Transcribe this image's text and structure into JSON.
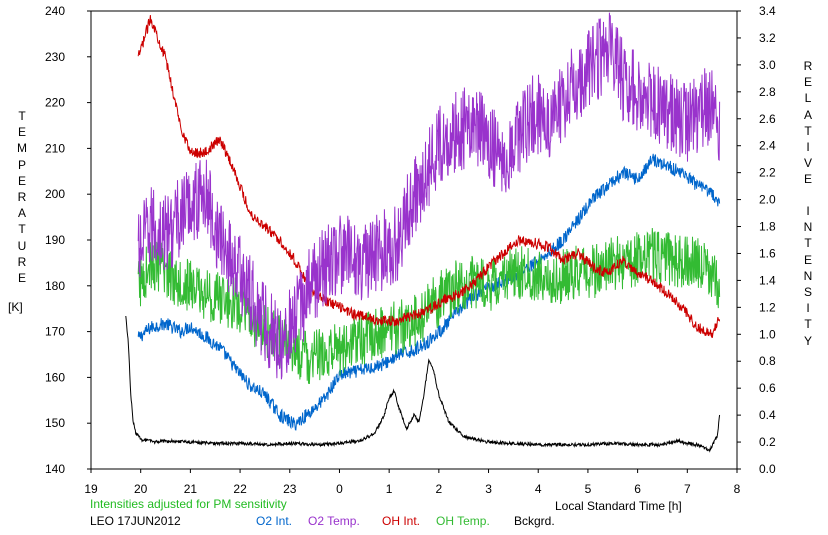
{
  "chart_data": {
    "type": "line",
    "y_left_label": "TEMPERATURE",
    "y_left_unit": "[K]",
    "y_right_label_1": "RELATIVE",
    "y_right_label_2": "INTENSITY",
    "xlabel": "Local Standard Time [h]",
    "note": "Intensities adjusted for PM sensitivity",
    "station": "LEO 17JUN2012",
    "x_ticks": [
      19,
      20,
      21,
      22,
      23,
      0,
      1,
      2,
      3,
      4,
      5,
      6,
      7,
      8
    ],
    "x_range_hours": [
      19,
      32
    ],
    "y_left_ticks": [
      140,
      150,
      160,
      170,
      180,
      190,
      200,
      210,
      220,
      230,
      240
    ],
    "y_left_range": [
      140,
      240
    ],
    "y_right_ticks": [
      "0.0",
      "0.2",
      "0.4",
      "0.6",
      "0.8",
      "1.0",
      "1.2",
      "1.4",
      "1.6",
      "1.8",
      "2.0",
      "2.2",
      "2.4",
      "2.6",
      "2.8",
      "3.0",
      "3.2",
      "3.4"
    ],
    "y_right_range": [
      0.0,
      3.4
    ],
    "series": [
      {
        "name": "O2 Int.",
        "axis": "right",
        "color": "#0066cc",
        "x": [
          19.95,
          20.2,
          20.5,
          20.8,
          21.0,
          21.3,
          21.6,
          21.9,
          22.2,
          22.5,
          22.8,
          23.1,
          23.4,
          23.7,
          24.0,
          24.3,
          24.6,
          24.9,
          25.2,
          25.5,
          25.8,
          26.1,
          26.4,
          26.7,
          27.0,
          27.3,
          27.6,
          27.9,
          28.2,
          28.5,
          28.8,
          29.1,
          29.4,
          29.7,
          30.0,
          30.3,
          30.6,
          30.9,
          31.2,
          31.5,
          31.65
        ],
        "y": [
          0.97,
          1.05,
          1.08,
          1.02,
          1.06,
          0.98,
          0.9,
          0.75,
          0.62,
          0.55,
          0.4,
          0.33,
          0.42,
          0.52,
          0.7,
          0.72,
          0.75,
          0.78,
          0.85,
          0.88,
          0.95,
          1.05,
          1.18,
          1.28,
          1.35,
          1.4,
          1.45,
          1.52,
          1.6,
          1.7,
          1.85,
          2.0,
          2.1,
          2.2,
          2.15,
          2.3,
          2.25,
          2.2,
          2.1,
          2.05,
          1.95
        ]
      },
      {
        "name": "O2 Temp.",
        "axis": "left",
        "color": "#9933cc",
        "x": [
          19.95,
          20.2,
          20.5,
          20.8,
          21.0,
          21.3,
          21.6,
          21.9,
          22.2,
          22.5,
          22.8,
          23.1,
          23.4,
          23.7,
          24.0,
          24.3,
          24.6,
          24.9,
          25.2,
          25.5,
          25.8,
          26.1,
          26.4,
          26.7,
          27.0,
          27.3,
          27.6,
          27.9,
          28.2,
          28.5,
          28.8,
          29.1,
          29.4,
          29.7,
          30.0,
          30.3,
          30.6,
          30.9,
          31.2,
          31.5,
          31.65
        ],
        "y": [
          187,
          193,
          191,
          195,
          198,
          200,
          190,
          185,
          178,
          172,
          168,
          172,
          180,
          184,
          187,
          186,
          185,
          188,
          190,
          200,
          206,
          212,
          214,
          215,
          212,
          208,
          213,
          218,
          216,
          220,
          225,
          228,
          232,
          225,
          222,
          220,
          218,
          215,
          218,
          220,
          212
        ]
      },
      {
        "name": "OH Int.",
        "axis": "right",
        "color": "#cc0000",
        "x": [
          19.95,
          20.2,
          20.5,
          20.8,
          21.0,
          21.3,
          21.6,
          21.9,
          22.2,
          22.5,
          22.8,
          23.1,
          23.4,
          23.7,
          24.0,
          24.3,
          24.6,
          24.9,
          25.2,
          25.5,
          25.8,
          26.1,
          26.4,
          26.7,
          27.0,
          27.3,
          27.6,
          27.9,
          28.2,
          28.5,
          28.8,
          29.1,
          29.4,
          29.7,
          30.0,
          30.3,
          30.6,
          30.9,
          31.2,
          31.5,
          31.65
        ],
        "y": [
          3.05,
          3.35,
          3.05,
          2.55,
          2.35,
          2.35,
          2.45,
          2.2,
          1.9,
          1.8,
          1.7,
          1.55,
          1.35,
          1.25,
          1.2,
          1.15,
          1.12,
          1.1,
          1.1,
          1.14,
          1.18,
          1.25,
          1.3,
          1.38,
          1.5,
          1.6,
          1.7,
          1.68,
          1.65,
          1.55,
          1.6,
          1.5,
          1.45,
          1.55,
          1.45,
          1.4,
          1.3,
          1.2,
          1.05,
          1.0,
          1.12
        ]
      },
      {
        "name": "OH Temp.",
        "axis": "left",
        "color": "#33bb33",
        "x": [
          19.95,
          20.2,
          20.5,
          20.8,
          21.0,
          21.3,
          21.6,
          21.9,
          22.2,
          22.5,
          22.8,
          23.1,
          23.4,
          23.7,
          24.0,
          24.3,
          24.6,
          24.9,
          25.2,
          25.5,
          25.8,
          26.1,
          26.4,
          26.7,
          27.0,
          27.3,
          27.6,
          27.9,
          28.2,
          28.5,
          28.8,
          29.1,
          29.4,
          29.7,
          30.0,
          30.3,
          30.6,
          30.9,
          31.2,
          31.5,
          31.65
        ],
        "y": [
          180,
          185,
          183,
          181,
          180,
          178,
          177,
          176,
          173,
          170,
          168,
          166,
          164,
          165,
          166,
          168,
          169,
          170,
          171,
          172,
          175,
          178,
          180,
          181,
          180,
          182,
          183,
          182,
          181,
          182,
          183,
          183,
          185,
          185,
          186,
          187,
          186,
          185,
          185,
          183,
          178
        ]
      },
      {
        "name": "Bckgrd.",
        "axis": "right",
        "color": "#000000",
        "x": [
          19.7,
          19.75,
          19.8,
          19.85,
          19.9,
          20.0,
          20.3,
          20.6,
          21.0,
          21.5,
          22.0,
          22.5,
          23.0,
          23.5,
          24.0,
          24.4,
          24.7,
          24.9,
          25.0,
          25.1,
          25.2,
          25.35,
          25.5,
          25.6,
          25.7,
          25.8,
          25.9,
          26.0,
          26.2,
          26.5,
          27.0,
          27.5,
          28.0,
          28.5,
          29.0,
          29.5,
          30.0,
          30.5,
          30.8,
          31.0,
          31.2,
          31.45,
          31.6,
          31.65
        ],
        "y": [
          1.13,
          0.95,
          0.55,
          0.35,
          0.27,
          0.22,
          0.2,
          0.21,
          0.2,
          0.19,
          0.19,
          0.18,
          0.19,
          0.18,
          0.19,
          0.21,
          0.26,
          0.4,
          0.53,
          0.58,
          0.45,
          0.3,
          0.4,
          0.35,
          0.55,
          0.82,
          0.72,
          0.55,
          0.35,
          0.24,
          0.2,
          0.19,
          0.18,
          0.18,
          0.18,
          0.19,
          0.18,
          0.18,
          0.21,
          0.19,
          0.18,
          0.14,
          0.24,
          0.4
        ]
      }
    ]
  }
}
